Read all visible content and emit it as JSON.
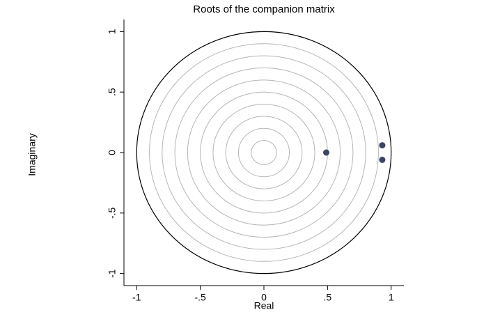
{
  "chart_data": {
    "type": "scatter",
    "title": "Roots of the companion matrix",
    "x_label": "Real",
    "y_label": "Imaginary",
    "x": [
      0.49,
      0.93,
      0.93
    ],
    "values": [
      0,
      0.06,
      -0.06
    ],
    "color": "#3b4461",
    "xlim": [
      -1.1,
      1.1
    ],
    "ylim": [
      -1.1,
      1.1
    ],
    "xticks": [
      -1,
      {
        "value": -0.5,
        "label": "-.5"
      },
      0,
      {
        "value": 0.5,
        "label": ".5"
      },
      1
    ],
    "yticks": [
      -1,
      {
        "value": -0.5,
        "label": "-.5"
      },
      0,
      {
        "value": 0.5,
        "label": ".5"
      },
      1
    ],
    "grid_circles": [
      0.1,
      0.2,
      0.3,
      0.4,
      0.5,
      0.6,
      0.7,
      0.8,
      0.9
    ],
    "unit_circle": 1
  }
}
